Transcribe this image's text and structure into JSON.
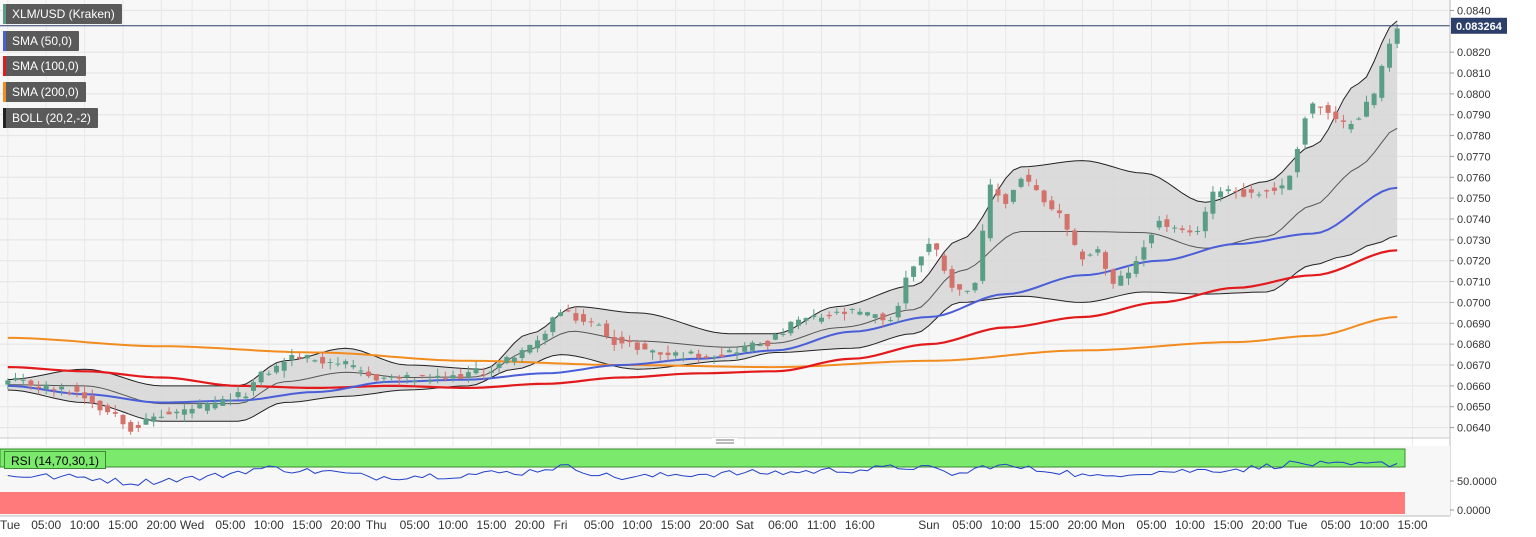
{
  "chart_data": {
    "type": "candlestick",
    "title": "XLM/USD (Kraken)",
    "last_price_label": "0.083264",
    "last_price": 0.083264,
    "ylim": [
      0.0635,
      0.0845
    ],
    "y_ticks": [
      "0.0640",
      "0.0650",
      "0.0660",
      "0.0670",
      "0.0680",
      "0.0690",
      "0.0700",
      "0.0710",
      "0.0720",
      "0.0730",
      "0.0740",
      "0.0750",
      "0.0760",
      "0.0770",
      "0.0780",
      "0.0790",
      "0.0800",
      "0.0810",
      "0.0820",
      "0.0840"
    ],
    "x_labels": [
      "Tue",
      "05:00",
      "10:00",
      "15:00",
      "20:00",
      "Wed",
      "05:00",
      "10:00",
      "15:00",
      "20:00",
      "Thu",
      "05:00",
      "10:00",
      "15:00",
      "20:00",
      "Fri",
      "05:00",
      "10:00",
      "15:00",
      "20:00",
      "Sat",
      "06:00",
      "11:00",
      "16:00",
      "Sun",
      "05:00",
      "10:00",
      "15:00",
      "20:00",
      "Mon",
      "05:00",
      "10:00",
      "15:00",
      "20:00",
      "Tue",
      "05:00",
      "10:00",
      "15:00"
    ],
    "x_label_bar_index": [
      0,
      5,
      10,
      15,
      20,
      24,
      29,
      34,
      39,
      44,
      48,
      53,
      58,
      63,
      68,
      72,
      77,
      82,
      87,
      92,
      96,
      101,
      106,
      111,
      120,
      125,
      130,
      135,
      140,
      144,
      149,
      154,
      159,
      164,
      168,
      173,
      178,
      183
    ],
    "n_bars": 182,
    "close_anchors": [
      [
        0,
        0.0662
      ],
      [
        8,
        0.0658
      ],
      [
        14,
        0.0647
      ],
      [
        16,
        0.064
      ],
      [
        20,
        0.0646
      ],
      [
        26,
        0.065
      ],
      [
        30,
        0.0655
      ],
      [
        34,
        0.0667
      ],
      [
        37,
        0.0674
      ],
      [
        42,
        0.0672
      ],
      [
        48,
        0.0664
      ],
      [
        56,
        0.0663
      ],
      [
        62,
        0.0667
      ],
      [
        68,
        0.0678
      ],
      [
        72,
        0.0695
      ],
      [
        76,
        0.069
      ],
      [
        80,
        0.068
      ],
      [
        86,
        0.0675
      ],
      [
        92,
        0.0675
      ],
      [
        98,
        0.068
      ],
      [
        104,
        0.0692
      ],
      [
        110,
        0.0695
      ],
      [
        115,
        0.0692
      ],
      [
        118,
        0.0718
      ],
      [
        120,
        0.0728
      ],
      [
        124,
        0.0705
      ],
      [
        126,
        0.071
      ],
      [
        128,
        0.0755
      ],
      [
        130,
        0.0748
      ],
      [
        132,
        0.076
      ],
      [
        136,
        0.0745
      ],
      [
        140,
        0.0722
      ],
      [
        142,
        0.0725
      ],
      [
        144,
        0.0708
      ],
      [
        146,
        0.0715
      ],
      [
        150,
        0.0738
      ],
      [
        154,
        0.0732
      ],
      [
        158,
        0.0755
      ],
      [
        162,
        0.0752
      ],
      [
        166,
        0.0755
      ],
      [
        170,
        0.0795
      ],
      [
        174,
        0.0785
      ],
      [
        176,
        0.079
      ],
      [
        178,
        0.08
      ],
      [
        180,
        0.0825
      ],
      [
        181,
        0.0832
      ]
    ],
    "sma_labels": [
      "SMA (50,0)",
      "SMA (100,0)",
      "SMA (200,0)"
    ],
    "sma50_anchors": [
      [
        0,
        0.066
      ],
      [
        10,
        0.0656
      ],
      [
        20,
        0.0652
      ],
      [
        30,
        0.0653
      ],
      [
        40,
        0.0657
      ],
      [
        50,
        0.0662
      ],
      [
        60,
        0.0663
      ],
      [
        70,
        0.0666
      ],
      [
        80,
        0.067
      ],
      [
        90,
        0.0673
      ],
      [
        100,
        0.0677
      ],
      [
        110,
        0.0686
      ],
      [
        120,
        0.0693
      ],
      [
        130,
        0.0704
      ],
      [
        140,
        0.0713
      ],
      [
        150,
        0.072
      ],
      [
        160,
        0.0728
      ],
      [
        170,
        0.0733
      ],
      [
        181,
        0.0755
      ]
    ],
    "sma100_anchors": [
      [
        0,
        0.0669
      ],
      [
        10,
        0.0667
      ],
      [
        20,
        0.0664
      ],
      [
        30,
        0.066
      ],
      [
        40,
        0.0659
      ],
      [
        50,
        0.066
      ],
      [
        60,
        0.0659
      ],
      [
        70,
        0.0661
      ],
      [
        80,
        0.0664
      ],
      [
        90,
        0.0666
      ],
      [
        100,
        0.0667
      ],
      [
        110,
        0.0673
      ],
      [
        120,
        0.068
      ],
      [
        130,
        0.0688
      ],
      [
        140,
        0.0693
      ],
      [
        150,
        0.07
      ],
      [
        160,
        0.0707
      ],
      [
        170,
        0.0713
      ],
      [
        181,
        0.0725
      ]
    ],
    "sma200_anchors": [
      [
        0,
        0.0683
      ],
      [
        20,
        0.0679
      ],
      [
        40,
        0.0676
      ],
      [
        60,
        0.0672
      ],
      [
        80,
        0.067
      ],
      [
        100,
        0.0669
      ],
      [
        120,
        0.0672
      ],
      [
        140,
        0.0677
      ],
      [
        160,
        0.0681
      ],
      [
        170,
        0.0684
      ],
      [
        181,
        0.0693
      ]
    ],
    "boll_label": "BOLL (20,2,-2)",
    "boll_upper_anchors": [
      [
        0,
        0.0663
      ],
      [
        10,
        0.0668
      ],
      [
        20,
        0.066
      ],
      [
        30,
        0.066
      ],
      [
        36,
        0.0672
      ],
      [
        44,
        0.0678
      ],
      [
        52,
        0.067
      ],
      [
        62,
        0.0668
      ],
      [
        68,
        0.0685
      ],
      [
        74,
        0.0698
      ],
      [
        82,
        0.0695
      ],
      [
        94,
        0.0685
      ],
      [
        100,
        0.0685
      ],
      [
        108,
        0.0698
      ],
      [
        118,
        0.0708
      ],
      [
        124,
        0.073
      ],
      [
        132,
        0.0765
      ],
      [
        140,
        0.0768
      ],
      [
        148,
        0.0762
      ],
      [
        156,
        0.0748
      ],
      [
        164,
        0.0758
      ],
      [
        170,
        0.0775
      ],
      [
        176,
        0.0805
      ],
      [
        181,
        0.0835
      ]
    ],
    "boll_lower_anchors": [
      [
        0,
        0.0658
      ],
      [
        10,
        0.0652
      ],
      [
        20,
        0.0643
      ],
      [
        30,
        0.0643
      ],
      [
        36,
        0.0652
      ],
      [
        44,
        0.0655
      ],
      [
        52,
        0.0658
      ],
      [
        60,
        0.066
      ],
      [
        66,
        0.0668
      ],
      [
        72,
        0.0675
      ],
      [
        82,
        0.0668
      ],
      [
        94,
        0.0672
      ],
      [
        100,
        0.0676
      ],
      [
        110,
        0.0678
      ],
      [
        118,
        0.0685
      ],
      [
        124,
        0.07
      ],
      [
        132,
        0.0703
      ],
      [
        140,
        0.07
      ],
      [
        148,
        0.0705
      ],
      [
        156,
        0.0704
      ],
      [
        164,
        0.0705
      ],
      [
        170,
        0.0718
      ],
      [
        174,
        0.0722
      ],
      [
        178,
        0.0728
      ],
      [
        181,
        0.0732
      ]
    ],
    "rsi_label": "RSI (14,70,30,1)",
    "rsi_ticks": [
      "50.0000",
      "0.0000"
    ],
    "rsi_ylim": [
      0,
      100
    ],
    "rsi_anchors": [
      [
        0,
        58
      ],
      [
        10,
        55
      ],
      [
        16,
        48
      ],
      [
        24,
        54
      ],
      [
        34,
        68
      ],
      [
        40,
        64
      ],
      [
        48,
        56
      ],
      [
        56,
        58
      ],
      [
        66,
        62
      ],
      [
        72,
        70
      ],
      [
        80,
        55
      ],
      [
        90,
        60
      ],
      [
        100,
        62
      ],
      [
        110,
        66
      ],
      [
        118,
        70
      ],
      [
        124,
        60
      ],
      [
        128,
        72
      ],
      [
        136,
        65
      ],
      [
        142,
        55
      ],
      [
        146,
        62
      ],
      [
        152,
        64
      ],
      [
        160,
        67
      ],
      [
        168,
        75
      ],
      [
        174,
        72
      ],
      [
        181,
        75
      ]
    ]
  },
  "legend_colors": {
    "sma50": "#4a5ed8",
    "sma100": "#e31a1c",
    "sma200": "#f28c1e",
    "boll": "#333333"
  },
  "candle_colors": {
    "up": "#5b9e86",
    "down": "#d3716b"
  }
}
